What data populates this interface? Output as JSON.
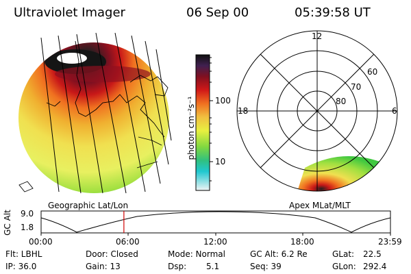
{
  "header": {
    "instrument": "Ultraviolet Imager",
    "date": "06 Sep 00",
    "time": "05:39:58 UT"
  },
  "colorbar": {
    "unit_label": "photon cm⁻²s⁻¹",
    "ticks": [
      "100",
      "10"
    ]
  },
  "polar_plot": {
    "mlt_labels": [
      "12",
      "18",
      "6"
    ],
    "lat_labels": [
      "60",
      "70",
      "80"
    ]
  },
  "panel_labels": {
    "geo": "Geographic Lat/Lon",
    "apex": "Apex MLat/MLT"
  },
  "altitude_plot": {
    "y_label": "GC Alt",
    "y_ticks": [
      "9.0",
      "1.8"
    ],
    "x_ticks": [
      "00:00",
      "06:00",
      "12:00",
      "18:00",
      "23:59"
    ],
    "current_time_fraction": 0.237
  },
  "footer": {
    "flt": "Flt: LBHL",
    "ip": "IP: 36.0",
    "door": "Door: Closed",
    "gain": "Gain: 13",
    "mode": "Mode: Normal",
    "dsp_label": "Dsp:",
    "dsp_value": "5.1",
    "gc_alt": "GC Alt: 6.2 Re",
    "seq": "Seq: 39",
    "glat_label": "GLat:",
    "glat_value": "22.5",
    "glon_label": "GLon:",
    "glon_value": "292.4"
  },
  "colors": {
    "low": "#e8f0f0",
    "cyan": "#20c8d0",
    "green": "#40c840",
    "yellow": "#f0f060",
    "orange": "#f09020",
    "red": "#c81818",
    "dark": "#202020",
    "marker": "#d00000"
  }
}
